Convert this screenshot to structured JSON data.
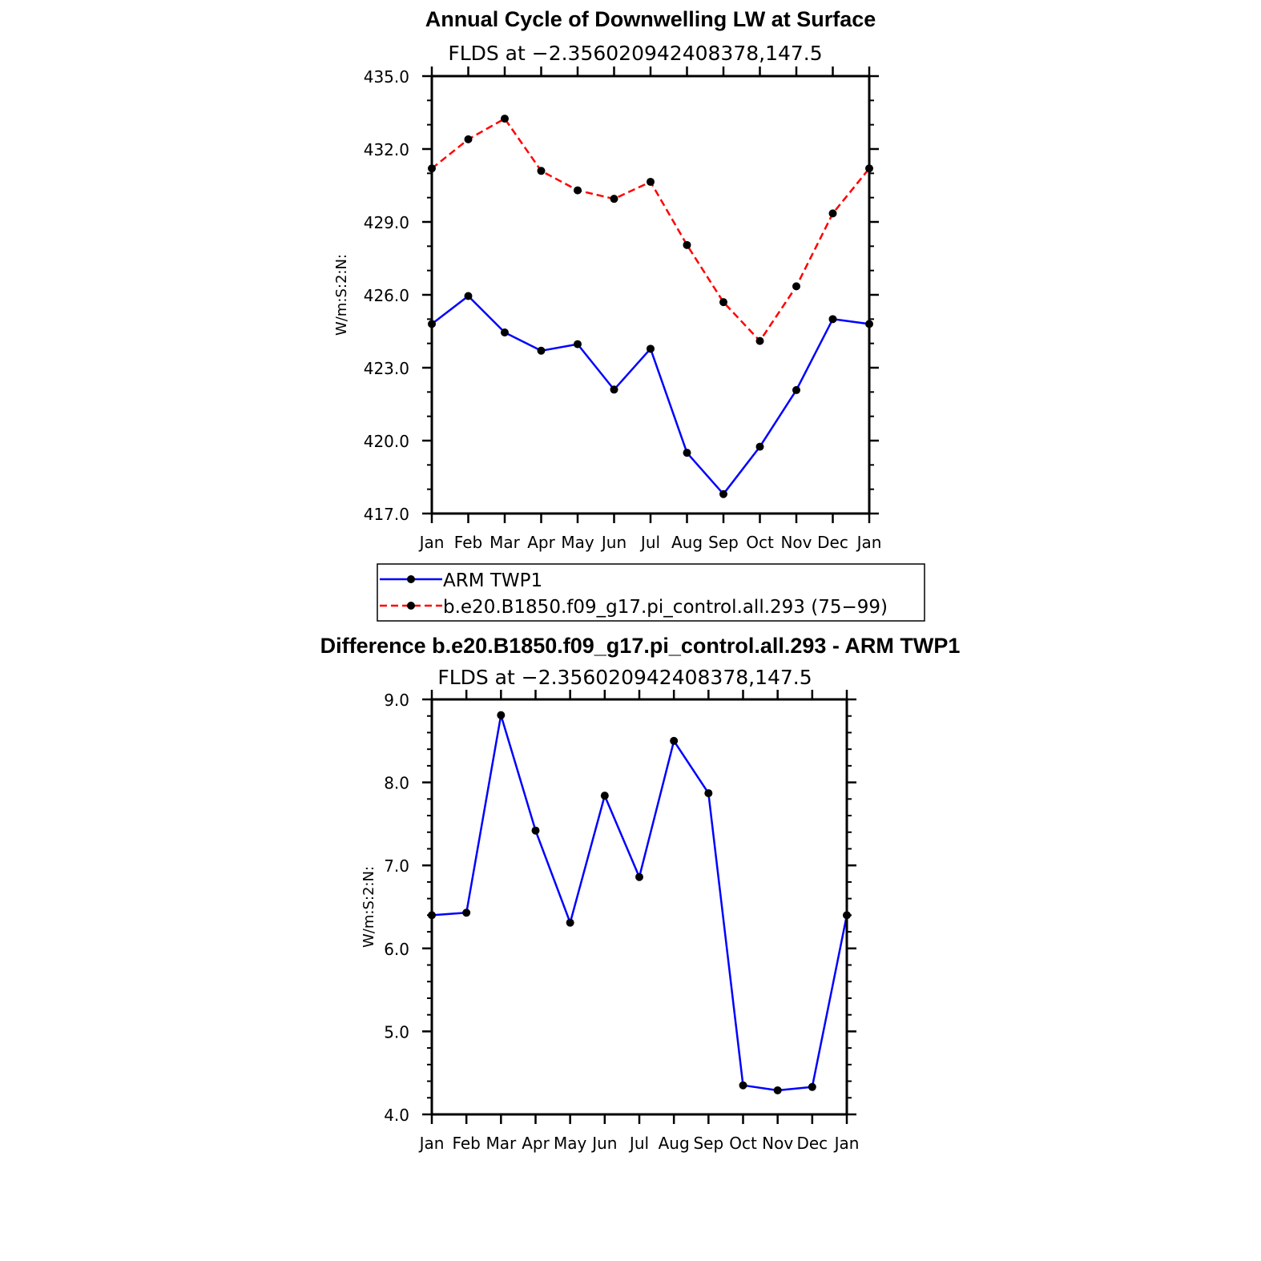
{
  "chart_data": [
    {
      "type": "line",
      "title": "Annual Cycle of Downwelling LW at Surface",
      "subtitle": "FLDS at −2.356020942408378,147.5",
      "xlabel": "",
      "ylabel": "W/m:S:2:N:",
      "categories": [
        "Jan",
        "Feb",
        "Mar",
        "Apr",
        "May",
        "Jun",
        "Jul",
        "Aug",
        "Sep",
        "Oct",
        "Nov",
        "Dec",
        "Jan"
      ],
      "ylim": [
        417.0,
        435.0
      ],
      "yticks": [
        "417.0",
        "420.0",
        "423.0",
        "426.0",
        "429.0",
        "432.0",
        "435.0"
      ],
      "grid": false,
      "legend_position": "bottom",
      "series": [
        {
          "name": "ARM TWP1",
          "color": "#0000ff",
          "style": "solid",
          "values": [
            424.8,
            425.95,
            424.45,
            423.7,
            423.97,
            422.1,
            423.78,
            419.5,
            417.8,
            419.75,
            422.08,
            425.0,
            424.8
          ]
        },
        {
          "name": "b.e20.B1850.f09_g17.pi_control.all.293 (75−99)",
          "color": "#ff0000",
          "style": "dashed",
          "values": [
            431.2,
            432.4,
            433.25,
            431.1,
            430.3,
            429.95,
            430.65,
            428.05,
            425.7,
            424.1,
            426.35,
            429.35,
            431.2
          ]
        }
      ]
    },
    {
      "type": "line",
      "title": "Difference b.e20.B1850.f09_g17.pi_control.all.293 - ARM TWP1",
      "subtitle": "FLDS at −2.356020942408378,147.5",
      "xlabel": "",
      "ylabel": "W/m:S:2:N:",
      "categories": [
        "Jan",
        "Feb",
        "Mar",
        "Apr",
        "May",
        "Jun",
        "Jul",
        "Aug",
        "Sep",
        "Oct",
        "Nov",
        "Dec",
        "Jan"
      ],
      "ylim": [
        4.0,
        9.0
      ],
      "yticks": [
        "4.0",
        "5.0",
        "6.0",
        "7.0",
        "8.0",
        "9.0"
      ],
      "grid": false,
      "series": [
        {
          "color": "#0000ff",
          "style": "solid",
          "values": [
            6.4,
            6.43,
            8.81,
            7.42,
            6.31,
            7.84,
            6.86,
            8.5,
            7.87,
            4.35,
            4.29,
            4.33,
            6.4
          ]
        }
      ]
    }
  ]
}
